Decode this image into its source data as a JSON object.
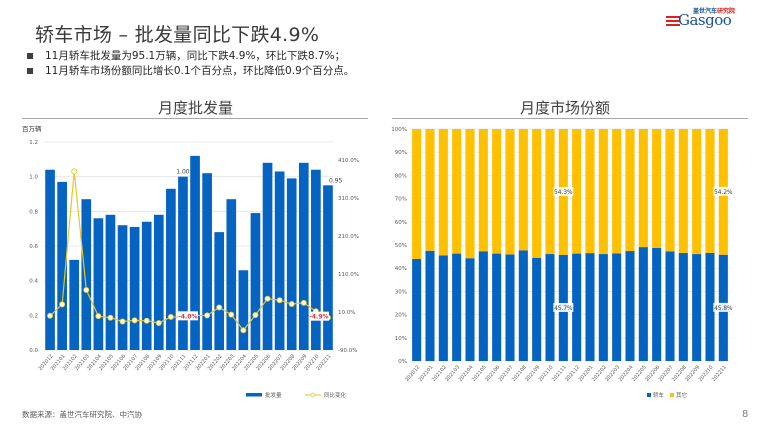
{
  "header": {
    "title": "轿车市场 – 批发量同比下跌4.9%",
    "bullets": [
      "11月轿车批发量为95.1万辆，同比下跌4.9%，环比下跌8.7%；",
      "11月轿车市场份额同比增长0.1个百分点，环比降低0.9个百分点。"
    ]
  },
  "logo": {
    "cn_prefix": "盖世汽车",
    "cn_suffix": "研究院",
    "en": "Gasgoo"
  },
  "footer": {
    "source": "数据来源：盖世汽车研究院、中汽协",
    "page": "8"
  },
  "colors": {
    "blue": "#0563C1",
    "yellow": "#FFC000",
    "line": "#E2C829",
    "red_label": "#E0303A"
  },
  "chart_data": [
    {
      "type": "bar",
      "title": "月度批发量",
      "ylabel": "百万辆",
      "ylim": [
        0,
        1.2
      ],
      "yticks": [
        "0.0",
        "0.2",
        "0.4",
        "0.6",
        "0.8",
        "1.0",
        "1.2"
      ],
      "y2lim": [
        -90,
        410
      ],
      "y2ticks": [
        "-90.0%",
        "10.0%",
        "110.0%",
        "210.0%",
        "310.0%",
        "410.0%"
      ],
      "grid": true,
      "legend": "bottom",
      "categories": [
        "202012",
        "202101",
        "202102",
        "202103",
        "202104",
        "202105",
        "202106",
        "202107",
        "202108",
        "202109",
        "202110",
        "202111",
        "202112",
        "202201",
        "202202",
        "202203",
        "202204",
        "202205",
        "202206",
        "202207",
        "202208",
        "202209",
        "202210",
        "202211"
      ],
      "series": [
        {
          "name": "批发量",
          "type": "bar",
          "axis": "left",
          "values": [
            1.04,
            0.97,
            0.52,
            0.87,
            0.76,
            0.78,
            0.72,
            0.71,
            0.74,
            0.78,
            0.93,
            1.0,
            1.12,
            1.02,
            0.68,
            0.87,
            0.46,
            0.79,
            1.08,
            1.03,
            0.99,
            1.08,
            1.04,
            0.95
          ]
        },
        {
          "name": "同比变化",
          "type": "line",
          "axis": "right",
          "unit": "%",
          "values": [
            0,
            30,
            380,
            68,
            -1,
            -5,
            -15,
            -12,
            -13,
            -19,
            -3,
            -4.0,
            1,
            1,
            22,
            3,
            -38,
            2,
            45,
            41,
            31,
            34,
            12,
            -4.9
          ]
        }
      ],
      "annotations": [
        {
          "category": "202111",
          "series": "批发量",
          "text": "1.00"
        },
        {
          "category": "202211",
          "series": "批发量",
          "text": "0.95"
        },
        {
          "category": "202111",
          "series": "同比变化",
          "text": "-4.0%"
        },
        {
          "category": "202211",
          "series": "同比变化",
          "text": "-4.9%"
        }
      ]
    },
    {
      "type": "bar",
      "stacked": true,
      "title": "月度市场份额",
      "ylim": [
        0,
        100
      ],
      "yticks": [
        "0%",
        "10%",
        "20%",
        "30%",
        "40%",
        "50%",
        "60%",
        "70%",
        "80%",
        "90%",
        "100%"
      ],
      "grid": true,
      "legend": "bottom",
      "categories": [
        "202012",
        "202101",
        "202102",
        "202103",
        "202104",
        "202105",
        "202106",
        "202107",
        "202108",
        "202109",
        "202110",
        "202111",
        "202112",
        "202201",
        "202202",
        "202203",
        "202204",
        "202205",
        "202206",
        "202207",
        "202208",
        "202209",
        "202210",
        "202211"
      ],
      "series": [
        {
          "name": "轿车",
          "values": [
            44.0,
            47.5,
            45.5,
            46.3,
            44.3,
            47.3,
            46.3,
            45.9,
            47.7,
            44.5,
            46.1,
            45.7,
            46.3,
            46.5,
            46.1,
            46.4,
            47.4,
            49.1,
            48.7,
            47.2,
            46.6,
            46.1,
            46.6,
            45.8
          ]
        },
        {
          "name": "其它",
          "values": [
            56.0,
            52.5,
            54.5,
            53.7,
            55.7,
            52.7,
            53.7,
            54.1,
            52.3,
            55.5,
            53.9,
            54.3,
            53.7,
            53.5,
            53.9,
            53.6,
            52.6,
            50.9,
            51.3,
            52.8,
            53.4,
            53.9,
            53.4,
            54.2
          ]
        }
      ],
      "annotations": [
        {
          "category": "202111",
          "series": "轿车",
          "text": "45.7%"
        },
        {
          "category": "202111",
          "series": "其它",
          "text": "54.3%"
        },
        {
          "category": "202211",
          "series": "轿车",
          "text": "45.8%"
        },
        {
          "category": "202211",
          "series": "其它",
          "text": "54.2%"
        }
      ]
    }
  ]
}
